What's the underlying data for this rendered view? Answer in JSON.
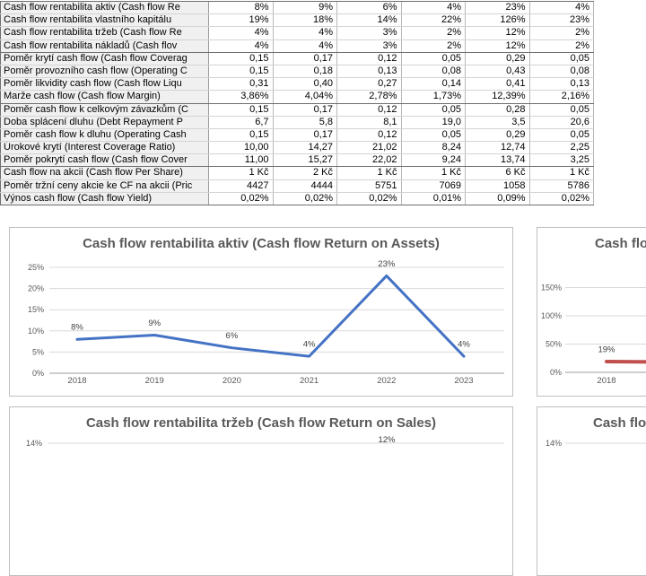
{
  "table": {
    "rows": [
      {
        "label": "Cash flow rentabilita aktiv (Cash flow Re",
        "values": [
          "8%",
          "9%",
          "6%",
          "4%",
          "23%",
          "4%"
        ]
      },
      {
        "label": "Cash flow rentabilita vlastního kapitálu",
        "values": [
          "19%",
          "18%",
          "14%",
          "22%",
          "126%",
          "23%"
        ]
      },
      {
        "label": "Cash flow rentabilita tržeb (Cash flow Re",
        "values": [
          "4%",
          "4%",
          "3%",
          "2%",
          "12%",
          "2%"
        ]
      },
      {
        "label": "Cash flow rentabilita nákladů (Cash flov",
        "values": [
          "4%",
          "4%",
          "3%",
          "2%",
          "12%",
          "2%"
        ]
      },
      {
        "label": "Poměr krytí cash flow (Cash flow Coverag",
        "values": [
          "0,15",
          "0,17",
          "0,12",
          "0,05",
          "0,29",
          "0,05"
        ]
      },
      {
        "label": "Poměr provozního cash flow (Operating C",
        "values": [
          "0,15",
          "0,18",
          "0,13",
          "0,08",
          "0,43",
          "0,08"
        ]
      },
      {
        "label": "Poměr likvidity cash flow (Cash flow Liqu",
        "values": [
          "0,31",
          "0,40",
          "0,27",
          "0,14",
          "0,41",
          "0,13"
        ]
      },
      {
        "label": "Marže cash flow (Cash flow Margin)",
        "values": [
          "3,86%",
          "4,04%",
          "2,78%",
          "1,73%",
          "12,39%",
          "2,16%"
        ]
      },
      {
        "label": "Poměr cash flow k celkovým závazkům (C",
        "values": [
          "0,15",
          "0,17",
          "0,12",
          "0,05",
          "0,28",
          "0,05"
        ]
      },
      {
        "label": "Doba splácení dluhu (Debt Repayment P",
        "values": [
          "6,7",
          "5,8",
          "8,1",
          "19,0",
          "3,5",
          "20,6"
        ]
      },
      {
        "label": "Poměr cash flow k dluhu (Operating Cash",
        "values": [
          "0,15",
          "0,17",
          "0,12",
          "0,05",
          "0,29",
          "0,05"
        ]
      },
      {
        "label": "Úrokové krytí (Interest Coverage Ratio)",
        "values": [
          "10,00",
          "14,27",
          "21,02",
          "8,24",
          "12,74",
          "2,25"
        ]
      },
      {
        "label": "Poměr pokrytí cash flow (Cash flow Cover",
        "values": [
          "11,00",
          "15,27",
          "22,02",
          "9,24",
          "13,74",
          "3,25"
        ]
      },
      {
        "label": "Cash flow na akcii (Cash flow Per Share)",
        "values": [
          "1 Kč",
          "2 Kč",
          "1 Kč",
          "1 Kč",
          "6 Kč",
          "1 Kč"
        ]
      },
      {
        "label": "Poměr tržní ceny akcie ke CF na akcii (Pric",
        "values": [
          "4427",
          "4444",
          "5751",
          "7069",
          "1058",
          "5786"
        ]
      },
      {
        "label": "Výnos cash flow (Cash flow Yield)",
        "values": [
          "0,02%",
          "0,02%",
          "0,02%",
          "0,01%",
          "0,09%",
          "0,02%"
        ]
      }
    ],
    "group_end_rows": [
      3,
      7,
      12,
      15
    ]
  },
  "chart_data": [
    {
      "id": "roa",
      "type": "line",
      "title": "Cash flow rentabilita aktiv (Cash flow Return on Assets)",
      "categories": [
        "2018",
        "2019",
        "2020",
        "2021",
        "2022",
        "2023"
      ],
      "values": [
        8,
        9,
        6,
        4,
        23,
        4
      ],
      "data_labels": [
        "8%",
        "9%",
        "6%",
        "4%",
        "23%",
        "4%"
      ],
      "yticks": [
        "0%",
        "5%",
        "10%",
        "15%",
        "20%",
        "25%"
      ],
      "ytick_step": 5,
      "ylim": [
        0,
        25
      ],
      "grid": true,
      "legend": "none",
      "line_color": "#4472C4"
    },
    {
      "id": "roe",
      "type": "line",
      "title_visible": "Cash flo",
      "categories_visible": [
        "2018"
      ],
      "values_visible": [
        19,
        18
      ],
      "data_labels_visible": [
        "19%"
      ],
      "yticks": [
        "0%",
        "50%",
        "100%",
        "150%"
      ],
      "ytick_step": 50,
      "ylim": [
        0,
        150
      ],
      "grid": true,
      "legend": "none",
      "line_color": "#C0504D",
      "clipped_right": true
    },
    {
      "id": "ros",
      "type": "line",
      "title": "Cash flow rentabilita tržeb (Cash flow Return on Sales)",
      "yticks_visible": [
        "14%"
      ],
      "data_labels_visible": [
        "12%"
      ],
      "grid": true,
      "legend": "none",
      "clipped_bottom": true
    },
    {
      "id": "roc",
      "type": "line",
      "title_visible": "Cash flo",
      "yticks_visible": [
        "14%"
      ],
      "grid": true,
      "legend": "none",
      "clipped_right": true,
      "clipped_bottom": true
    }
  ],
  "colors": {
    "accent_blue": "#4472C4",
    "accent_red": "#C0504D",
    "chart_text": "#595959",
    "data_label_text": "#404040",
    "gridline": "#D9D9D9",
    "axis_line": "#9c9c9c"
  }
}
